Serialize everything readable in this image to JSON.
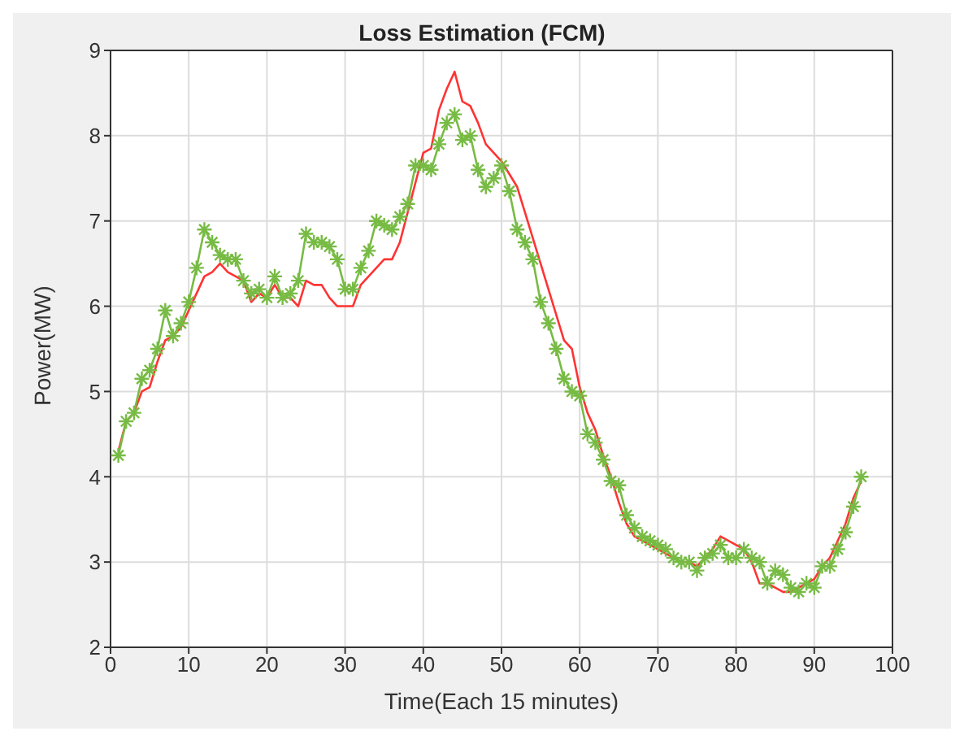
{
  "chart_data": {
    "type": "line",
    "title": "Loss Estimation (FCM)",
    "xlabel": "Time(Each 15 minutes)",
    "ylabel": "Power(MW)",
    "x": [
      1,
      2,
      3,
      4,
      5,
      6,
      7,
      8,
      9,
      10,
      11,
      12,
      13,
      14,
      15,
      16,
      17,
      18,
      19,
      20,
      21,
      22,
      23,
      24,
      25,
      26,
      27,
      28,
      29,
      30,
      31,
      32,
      33,
      34,
      35,
      36,
      37,
      38,
      39,
      40,
      41,
      42,
      43,
      44,
      45,
      46,
      47,
      48,
      49,
      50,
      51,
      52,
      53,
      54,
      55,
      56,
      57,
      58,
      59,
      60,
      61,
      62,
      63,
      64,
      65,
      66,
      67,
      68,
      69,
      70,
      71,
      72,
      73,
      74,
      75,
      76,
      77,
      78,
      79,
      80,
      81,
      82,
      83,
      84,
      85,
      86,
      87,
      88,
      89,
      90,
      91,
      92,
      93,
      94,
      95,
      96
    ],
    "series": [
      {
        "color": "#ff3333",
        "marker": "none",
        "values": [
          4.3,
          4.65,
          4.75,
          5.0,
          5.05,
          5.35,
          5.6,
          5.65,
          5.75,
          5.95,
          6.15,
          6.35,
          6.4,
          6.5,
          6.4,
          6.35,
          6.3,
          6.05,
          6.15,
          6.1,
          6.25,
          6.1,
          6.1,
          6.0,
          6.3,
          6.25,
          6.25,
          6.1,
          6.0,
          6.0,
          6.0,
          6.25,
          6.35,
          6.45,
          6.55,
          6.55,
          6.75,
          7.1,
          7.45,
          7.8,
          7.85,
          8.3,
          8.55,
          8.75,
          8.4,
          8.35,
          8.15,
          7.9,
          7.8,
          7.7,
          7.55,
          7.4,
          7.1,
          6.8,
          6.5,
          6.2,
          5.9,
          5.6,
          5.5,
          5.05,
          4.75,
          4.55,
          4.25,
          4.0,
          3.7,
          3.45,
          3.3,
          3.25,
          3.2,
          3.15,
          3.1,
          3.05,
          3.0,
          3.0,
          2.95,
          3.05,
          3.15,
          3.3,
          3.25,
          3.2,
          3.15,
          3.0,
          2.75,
          2.75,
          2.7,
          2.65,
          2.65,
          2.7,
          2.75,
          2.8,
          2.95,
          3.05,
          3.25,
          3.45,
          3.75,
          3.95
        ]
      },
      {
        "color": "#77bb44",
        "marker": "cross",
        "values": [
          4.25,
          4.65,
          4.75,
          5.15,
          5.25,
          5.5,
          5.95,
          5.65,
          5.8,
          6.05,
          6.45,
          6.9,
          6.75,
          6.6,
          6.55,
          6.55,
          6.3,
          6.15,
          6.2,
          6.1,
          6.35,
          6.1,
          6.15,
          6.3,
          6.85,
          6.75,
          6.75,
          6.7,
          6.55,
          6.2,
          6.2,
          6.45,
          6.65,
          7.0,
          6.95,
          6.9,
          7.05,
          7.2,
          7.65,
          7.65,
          7.6,
          7.9,
          8.15,
          8.25,
          7.95,
          8.0,
          7.6,
          7.4,
          7.5,
          7.65,
          7.35,
          6.9,
          6.75,
          6.55,
          6.05,
          5.8,
          5.5,
          5.15,
          5.0,
          4.95,
          4.5,
          4.4,
          4.2,
          3.95,
          3.9,
          3.55,
          3.4,
          3.3,
          3.25,
          3.2,
          3.15,
          3.05,
          3.0,
          3.0,
          2.9,
          3.05,
          3.1,
          3.2,
          3.05,
          3.05,
          3.15,
          3.05,
          3.0,
          2.75,
          2.9,
          2.85,
          2.7,
          2.65,
          2.75,
          2.7,
          2.95,
          2.95,
          3.15,
          3.35,
          3.65,
          4.0
        ]
      }
    ],
    "xlim": [
      0,
      100
    ],
    "xticks": [
      0,
      10,
      20,
      30,
      40,
      50,
      60,
      70,
      80,
      90,
      100
    ],
    "ylim": [
      2,
      9
    ],
    "yticks": [
      2,
      3,
      4,
      5,
      6,
      7,
      8,
      9
    ],
    "grid": true
  }
}
